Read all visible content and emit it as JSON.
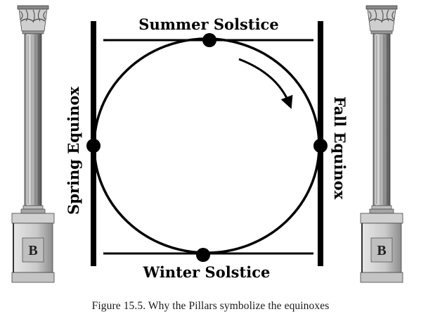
{
  "diagram": {
    "top_label": "Summer Solstice",
    "bottom_label": "Winter Solstice",
    "left_label": "Spring Equinox",
    "right_label": "Fall Equinox",
    "pillar_left_letter": "B",
    "pillar_right_letter": "B",
    "caption": "Figure 15.5. Why the Pillars symbolize the equinoxes"
  },
  "colors": {
    "ink": "#000000",
    "stone_light": "#e4e4e4",
    "stone_mid": "#a8a8a8",
    "stone_dark": "#555555"
  }
}
